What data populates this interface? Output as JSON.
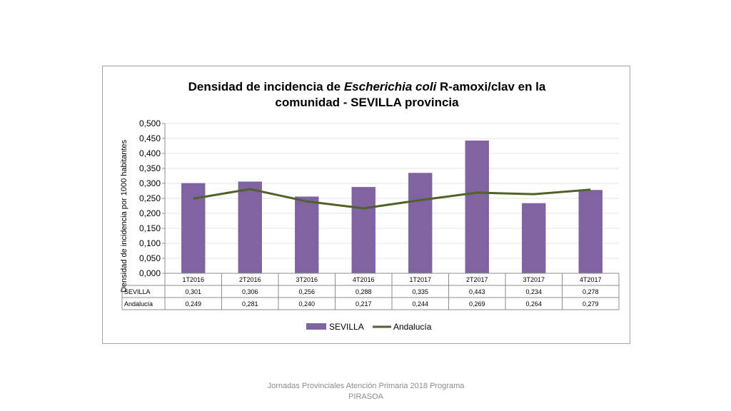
{
  "chart_data": {
    "type": "bar",
    "title_line1_parts": [
      {
        "text": "Densidad de incidencia de ",
        "italic": false
      },
      {
        "text": "Escherichia coli",
        "italic": true
      },
      {
        "text": " R-amoxi/clav en la",
        "italic": false
      }
    ],
    "title_line2": "comunidad - SEVILLA provincia",
    "ylabel": "Densidad de incidencia por 1000 habitantes",
    "ylim": [
      0,
      0.5
    ],
    "yticks": [
      "0,000",
      "0,050",
      "0,100",
      "0,150",
      "0,200",
      "0,250",
      "0,300",
      "0,350",
      "0,400",
      "0,450",
      "0,500"
    ],
    "categories": [
      "1T2016",
      "2T2016",
      "3T2016",
      "4T2016",
      "1T2017",
      "2T2017",
      "3T2017",
      "4T2017"
    ],
    "series": [
      {
        "name": "SEVILLA",
        "type": "bar",
        "color": "#8064a2",
        "values": [
          0.301,
          0.306,
          0.256,
          0.288,
          0.335,
          0.443,
          0.234,
          0.278
        ],
        "labels": [
          "0,301",
          "0,306",
          "0,256",
          "0,288",
          "0,335",
          "0,443",
          "0,234",
          "0,278"
        ]
      },
      {
        "name": "Andalucía",
        "type": "line",
        "color": "#4f6228",
        "values": [
          0.249,
          0.281,
          0.24,
          0.217,
          0.244,
          0.269,
          0.264,
          0.279
        ],
        "labels": [
          "0,249",
          "0,281",
          "0,240",
          "0,217",
          "0,244",
          "0,269",
          "0,264",
          "0,279"
        ]
      }
    ],
    "grid": true,
    "legend": "bottom",
    "data_table": true
  },
  "footer": {
    "line1": "Jornadas Provinciales Atención Primaria 2018  Programa",
    "line2": "PIRASOA"
  }
}
